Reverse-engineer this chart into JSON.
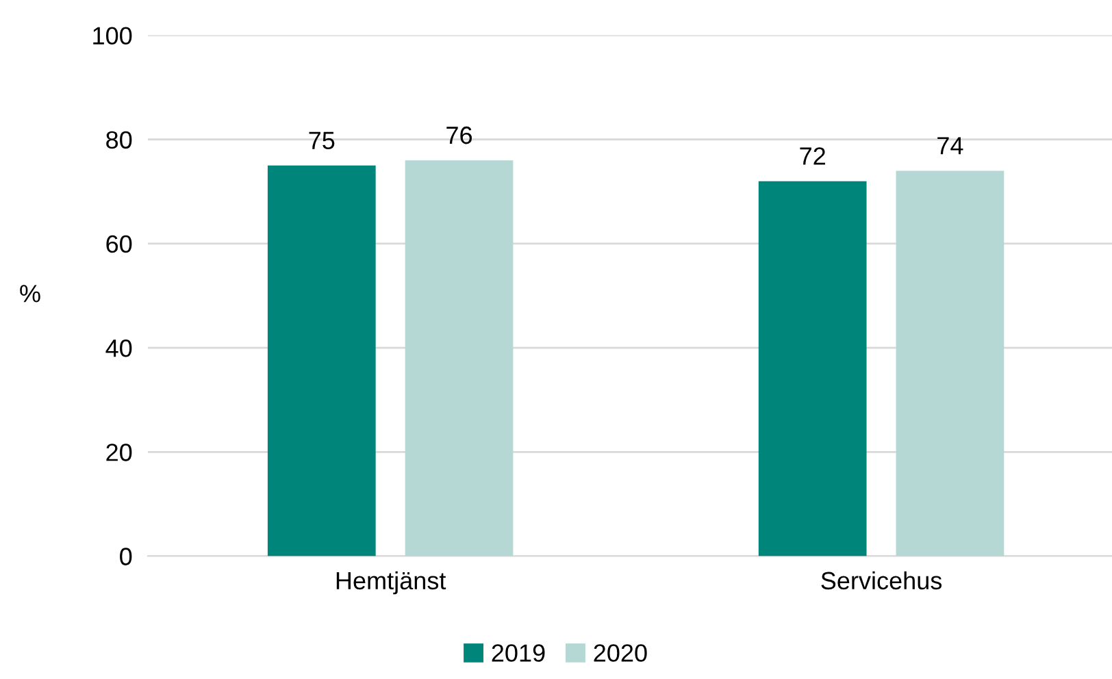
{
  "chart_data": {
    "type": "bar",
    "ylabel": "%",
    "categories": [
      "Hemtjänst",
      "Servicehus"
    ],
    "series": [
      {
        "name": "2019",
        "color": "#00857a",
        "values": [
          75,
          72
        ]
      },
      {
        "name": "2020",
        "color": "#b5d8d4",
        "values": [
          76,
          74
        ]
      }
    ],
    "ylim": [
      0,
      100
    ],
    "yticks": [
      0,
      20,
      40,
      60,
      80,
      100
    ],
    "grid": "y",
    "legend": "bottom",
    "data_labels": true
  }
}
